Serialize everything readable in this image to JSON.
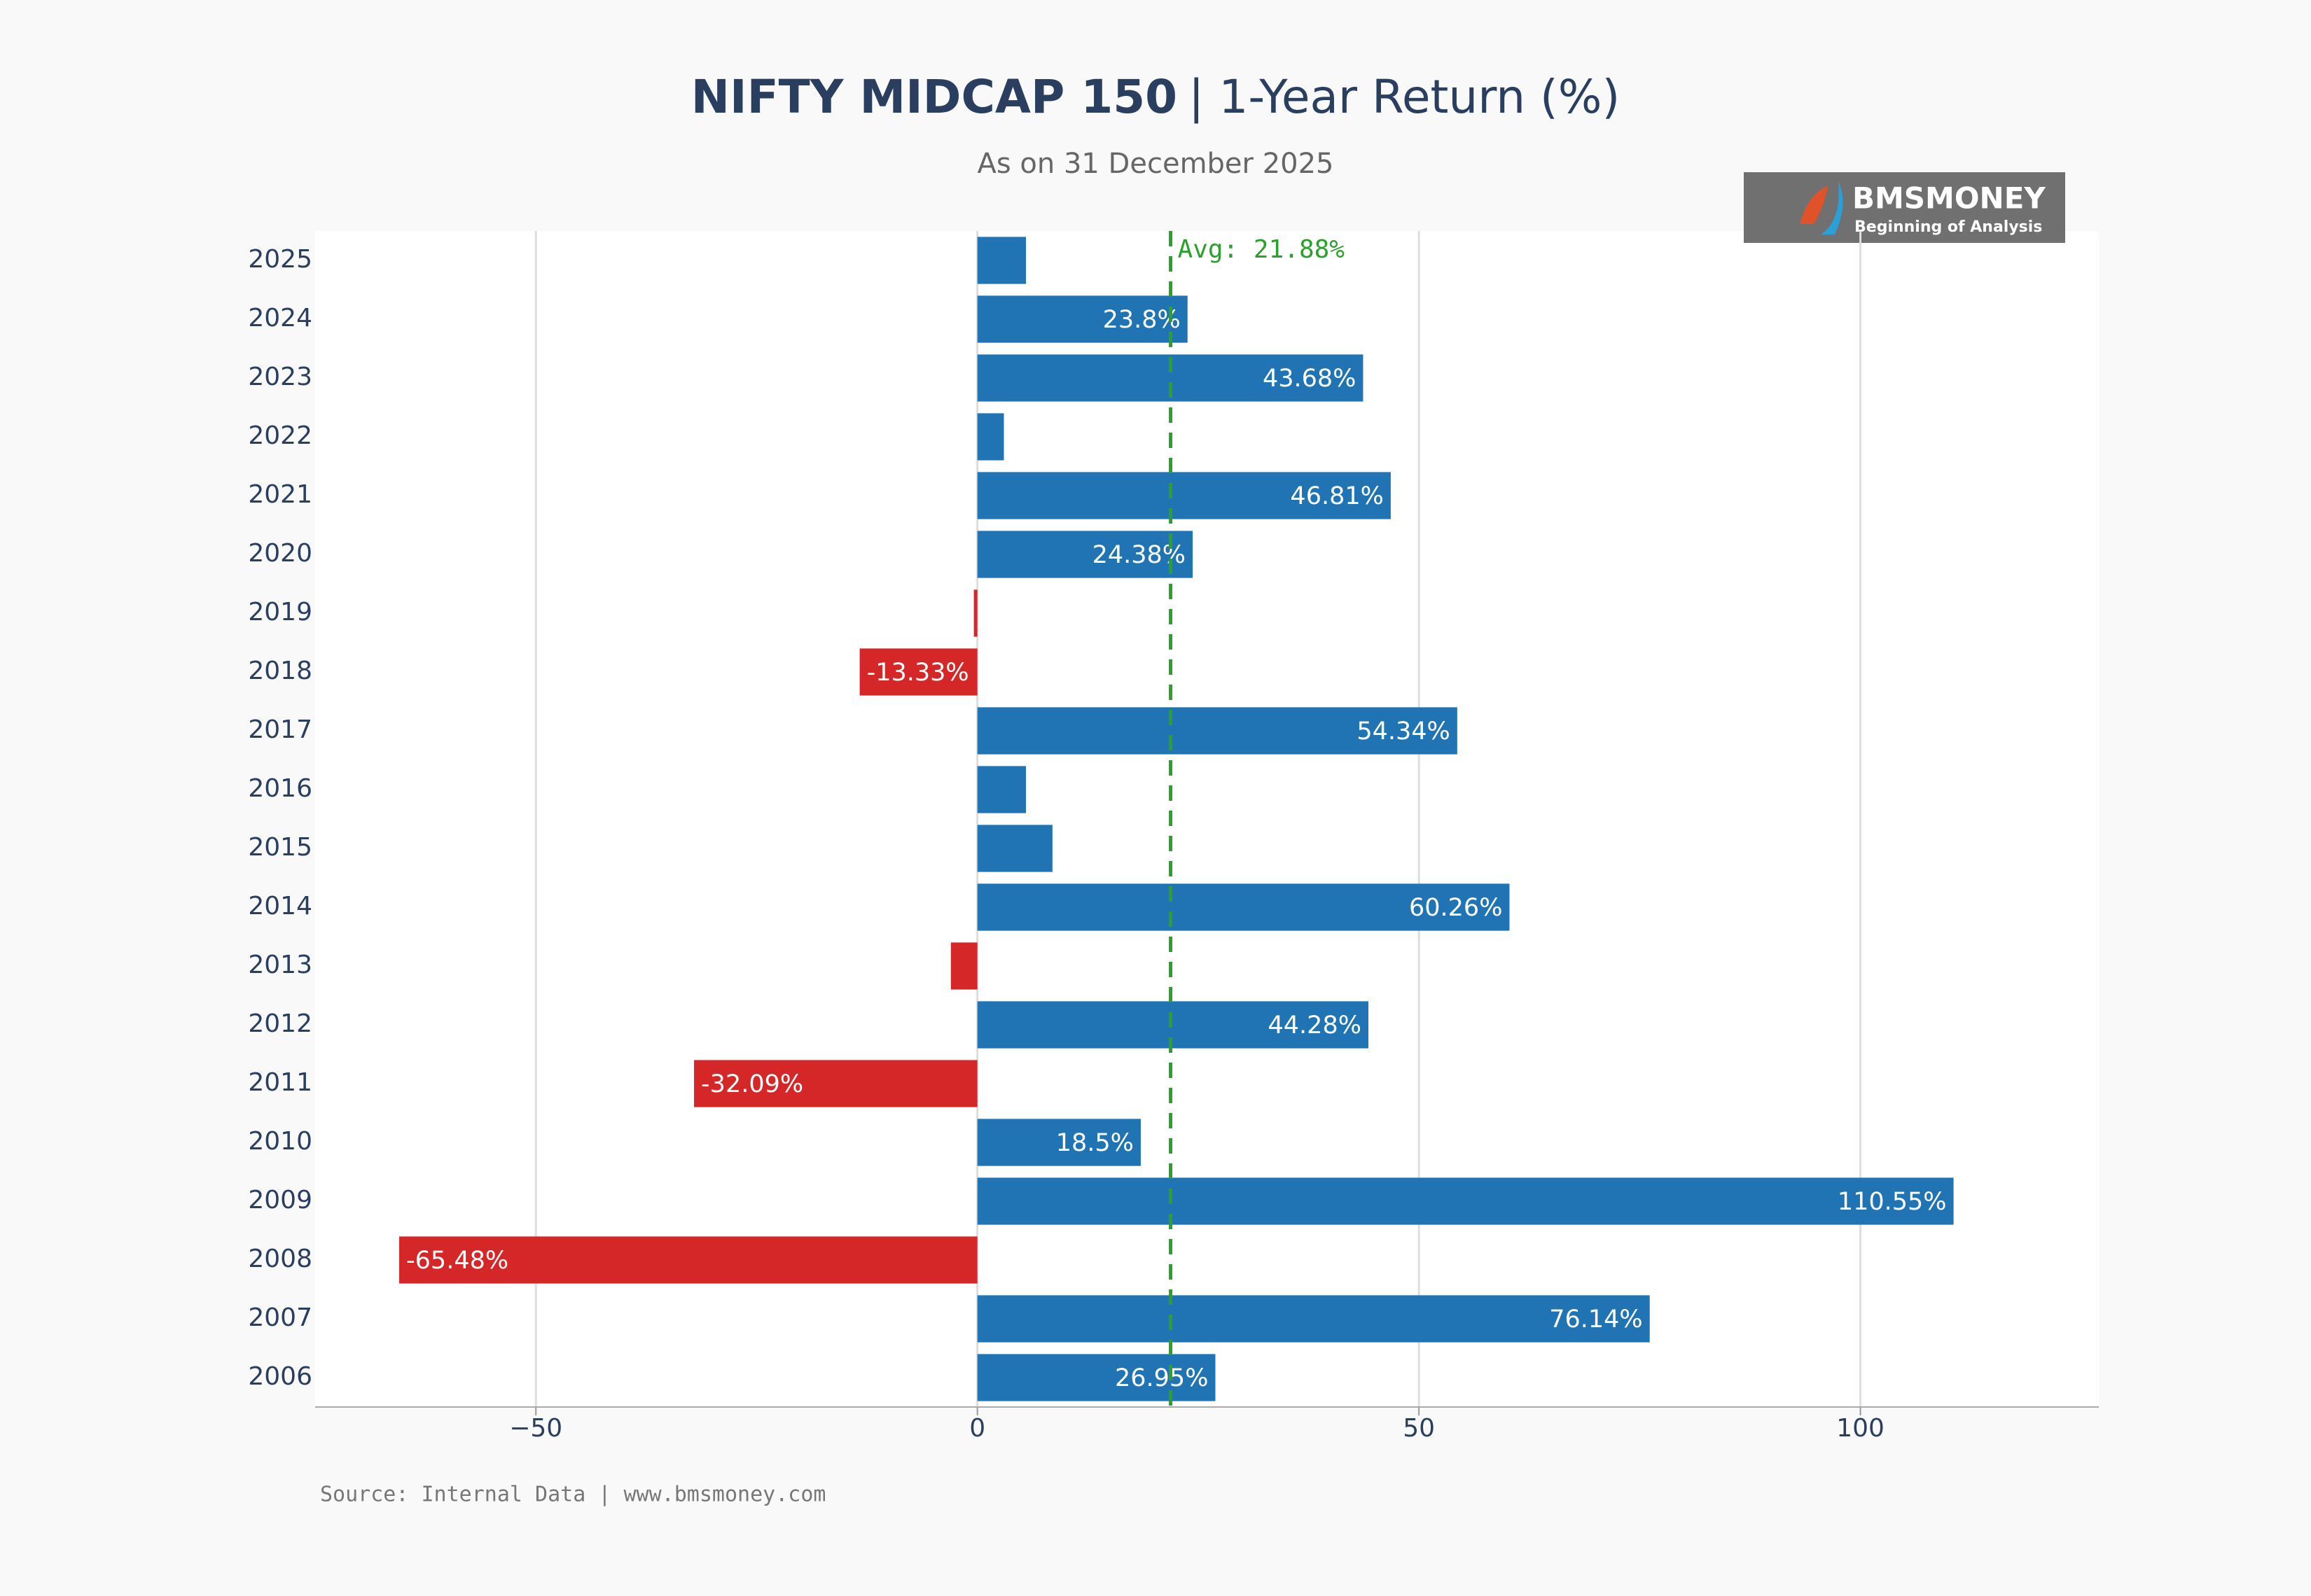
{
  "chart_data": {
    "type": "barh",
    "title": "NIFTY MIDCAP 150",
    "title_suffix": "| 1-Year Return (%)",
    "subtitle": "As on 31 December 2025",
    "categories": [
      "2025",
      "2024",
      "2023",
      "2022",
      "2021",
      "2020",
      "2019",
      "2018",
      "2017",
      "2016",
      "2015",
      "2014",
      "2013",
      "2012",
      "2011",
      "2010",
      "2009",
      "2008",
      "2007",
      "2006"
    ],
    "values": [
      5.5,
      23.8,
      43.68,
      3.0,
      46.81,
      24.38,
      -0.4,
      -13.33,
      54.34,
      5.5,
      8.5,
      60.26,
      -3.0,
      44.28,
      -32.09,
      18.5,
      110.55,
      -65.48,
      76.14,
      26.95
    ],
    "value_labels": [
      null,
      "23.8%",
      "43.68%",
      null,
      "46.81%",
      "24.38%",
      null,
      "-13.33%",
      "54.34%",
      null,
      null,
      "60.26%",
      null,
      "44.28%",
      "-32.09%",
      "18.5%",
      "110.55%",
      "-65.48%",
      "76.14%",
      "26.95%"
    ],
    "positive_color": "#2074b4",
    "negative_color": "#d62728",
    "xlim": [
      -75,
      127
    ],
    "xticks": [
      {
        "value": -50,
        "label": "−50"
      },
      0,
      50,
      100
    ],
    "grid": true,
    "average": {
      "value": 21.88,
      "label": "Avg: 21.88%",
      "color": "#2ca02c"
    },
    "logo": {
      "name": "BMSMONEY",
      "tagline": "Beginning of Analysis"
    },
    "source": "Source: Internal Data | www.bmsmoney.com"
  }
}
